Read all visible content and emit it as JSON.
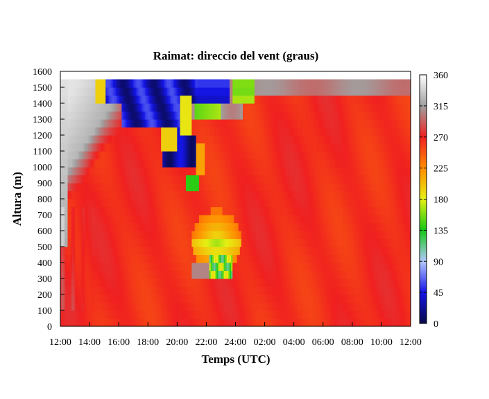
{
  "chart_data": {
    "type": "heatmap",
    "title": "Raimat: direccio del vent (graus)",
    "xlabel": "Temps (UTC)",
    "ylabel": "Altura (m)",
    "xlim": [
      0,
      24
    ],
    "ylim": [
      0,
      1600
    ],
    "x_ticks": [
      "12:00",
      "14:00",
      "16:00",
      "18:00",
      "20:00",
      "22:00",
      "24:00",
      "02:00",
      "04:00",
      "06:00",
      "08:00",
      "10:00",
      "12:00"
    ],
    "y_ticks": [
      "0",
      "100",
      "200",
      "300",
      "400",
      "500",
      "600",
      "700",
      "800",
      "900",
      "1000",
      "1100",
      "1200",
      "1300",
      "1400",
      "1500",
      "1600"
    ],
    "colorbar": {
      "range": [
        0,
        360
      ],
      "ticks": [
        "0",
        "45",
        "90",
        "135",
        "180",
        "225",
        "270",
        "315",
        "360"
      ],
      "palette": [
        [
          0,
          "#0a0a4a"
        ],
        [
          45,
          "#1414e6"
        ],
        [
          90,
          "#b4c8ff"
        ],
        [
          135,
          "#14c814"
        ],
        [
          180,
          "#e6f014"
        ],
        [
          225,
          "#ff8c00"
        ],
        [
          270,
          "#f02020"
        ],
        [
          315,
          "#a0a0a0"
        ],
        [
          360,
          "#ffffff"
        ]
      ]
    },
    "grid": false,
    "field_summary": {
      "background_direction": 265,
      "description_note": "Westerly flow (~260-280 deg) dominates; grey/white (310-355 deg) aloft in first hours; blue (20-60 deg) band 1000-1550 m between 15:00 and 23:30; green/yellow (130-200 deg) patches near 21:00-24:00 at 300-700 m."
    }
  }
}
